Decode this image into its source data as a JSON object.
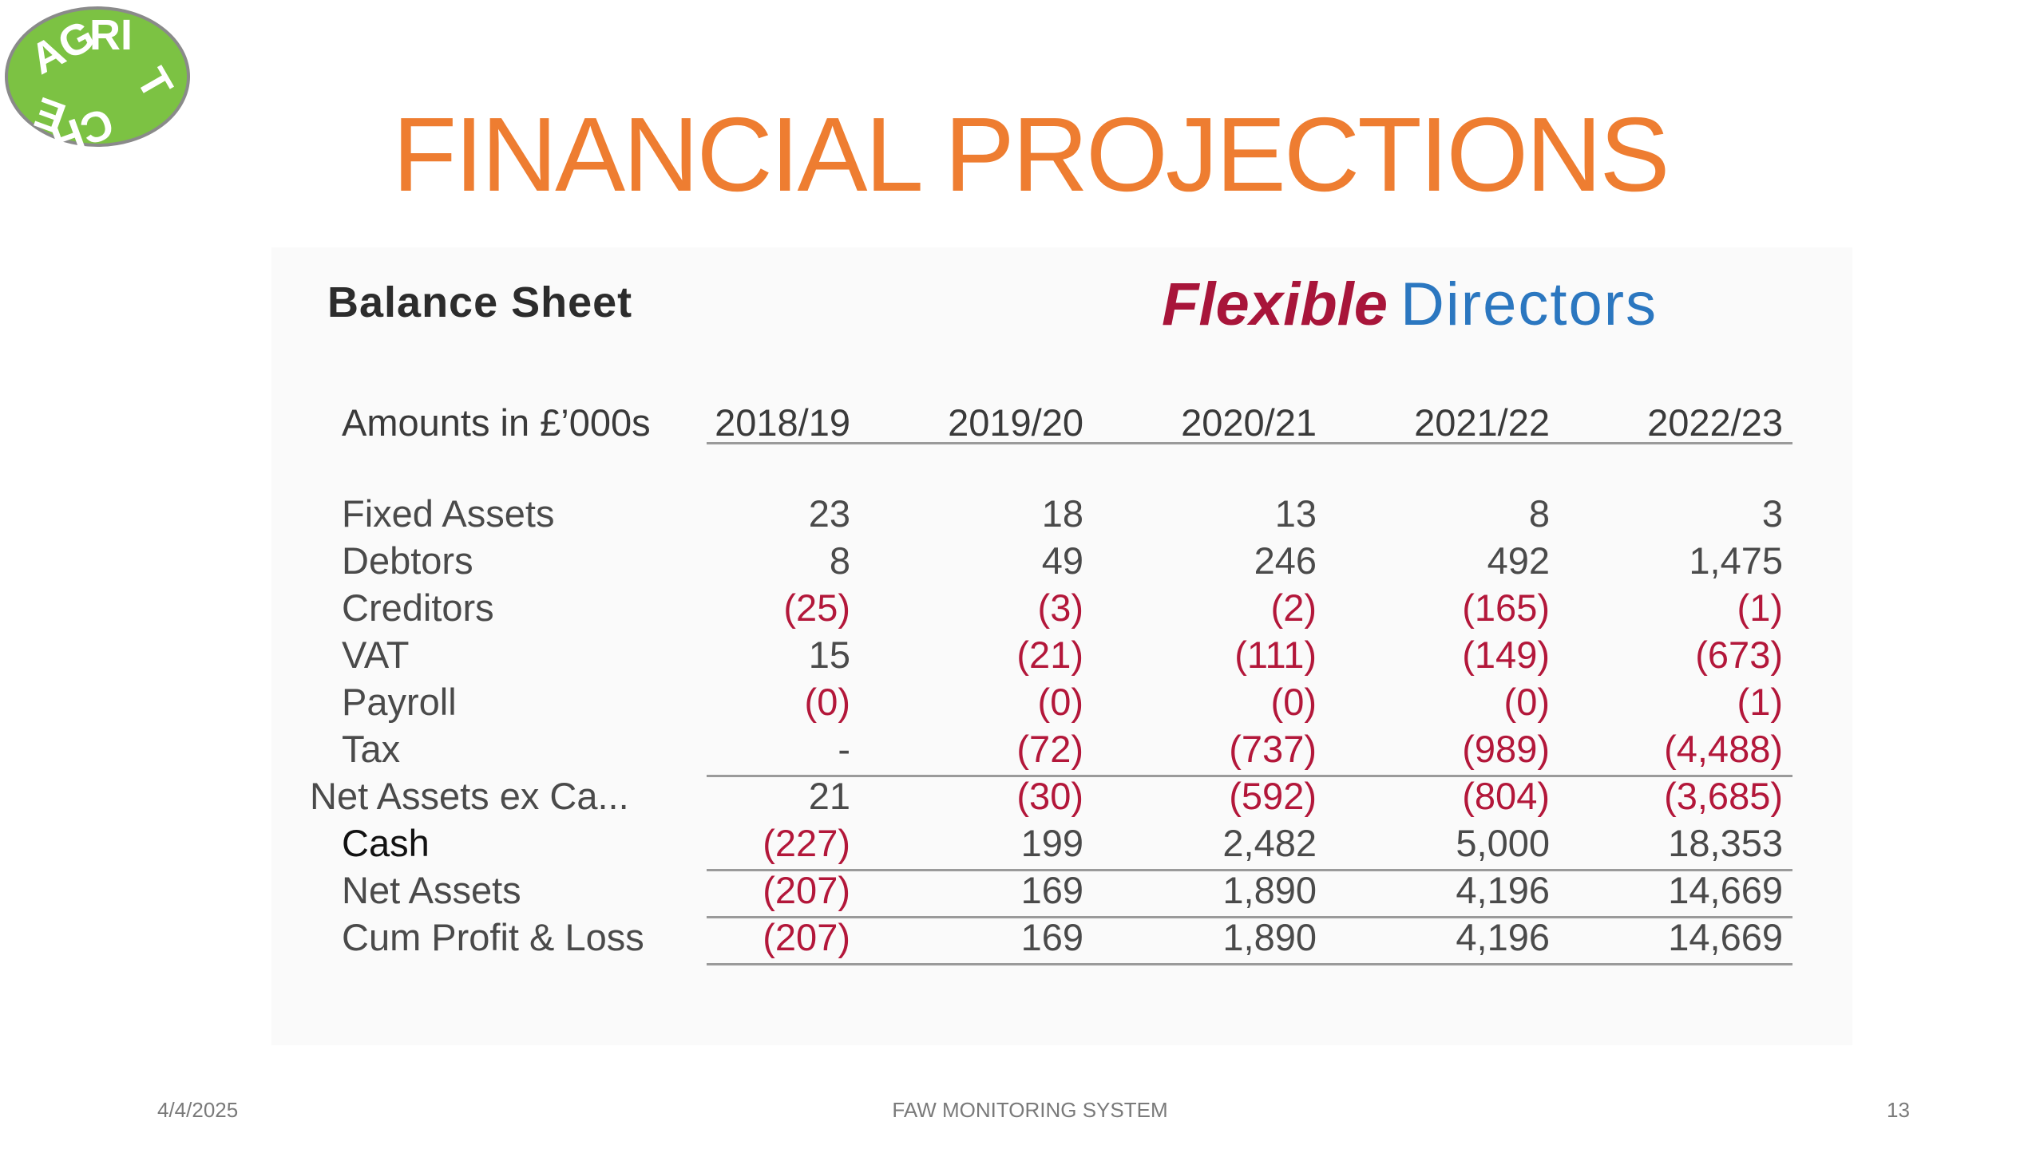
{
  "slide": {
    "title": "FINANCIAL PROJECTIONS",
    "logo_text": "AGRITECH",
    "footer": {
      "date": "4/4/2025",
      "center": "FAW MONITORING SYSTEM",
      "page": "13"
    }
  },
  "sheet": {
    "heading": "Balance Sheet",
    "brand_a": "Flexible",
    "brand_b": "Directors",
    "column_header": "Amounts in £’000s",
    "years": [
      "2018/19",
      "2019/20",
      "2020/21",
      "2021/22",
      "2022/23"
    ],
    "rows": [
      {
        "label": "Fixed Assets",
        "values": [
          "23",
          "18",
          "13",
          "8",
          "3"
        ]
      },
      {
        "label": "Debtors",
        "values": [
          "8",
          "49",
          "246",
          "492",
          "1,475"
        ]
      },
      {
        "label": "Creditors",
        "values": [
          "(25)",
          "(3)",
          "(2)",
          "(165)",
          "(1)"
        ]
      },
      {
        "label": "VAT",
        "values": [
          "15",
          "(21)",
          "(111)",
          "(149)",
          "(673)"
        ]
      },
      {
        "label": "Payroll",
        "values": [
          "(0)",
          "(0)",
          "(0)",
          "(0)",
          "(1)"
        ]
      },
      {
        "label": "Tax",
        "values": [
          "-",
          "(72)",
          "(737)",
          "(989)",
          "(4,488)"
        ]
      },
      {
        "label": "Net Assets ex Ca...",
        "values": [
          "21",
          "(30)",
          "(592)",
          "(804)",
          "(3,685)"
        ]
      },
      {
        "label": "Cash",
        "values": [
          "(227)",
          "199",
          "2,482",
          "5,000",
          "18,353"
        ]
      },
      {
        "label": "Net Assets",
        "values": [
          "(207)",
          "169",
          "1,890",
          "4,196",
          "14,669"
        ]
      },
      {
        "label": "Cum Profit & Loss",
        "values": [
          "(207)",
          "169",
          "1,890",
          "4,196",
          "14,669"
        ]
      }
    ],
    "colors": {
      "negative": "#b3173a",
      "title": "#ee7d31",
      "logo_green": "#7cc243"
    }
  }
}
